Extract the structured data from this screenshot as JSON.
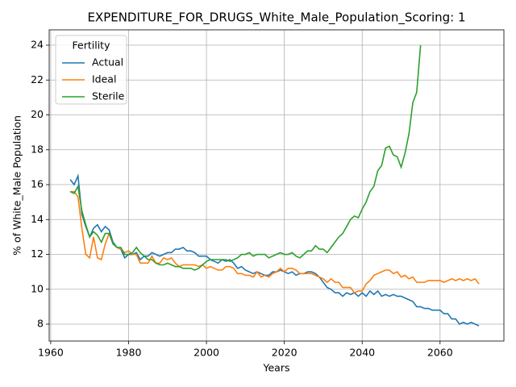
{
  "chart_data": {
    "type": "line",
    "title": "EXPENDITURE_FOR_DRUGS_White_Male_Population_Scoring: 1",
    "x_label": "Years",
    "y_label": "% of White_Male Population",
    "legend_title": "Fertility",
    "legend_loc": "upper-left",
    "grid": true,
    "xlim": [
      1959.6,
      2076.4
    ],
    "ylim": [
      7.03,
      24.88
    ],
    "xticks": [
      1960,
      1980,
      2000,
      2020,
      2040,
      2060
    ],
    "yticks": [
      8,
      10,
      12,
      14,
      16,
      18,
      20,
      22,
      24
    ],
    "x": [
      1965,
      1966,
      1967,
      1968,
      1969,
      1970,
      1971,
      1972,
      1973,
      1974,
      1975,
      1976,
      1977,
      1978,
      1979,
      1980,
      1981,
      1982,
      1983,
      1984,
      1985,
      1986,
      1987,
      1988,
      1989,
      1990,
      1991,
      1992,
      1993,
      1994,
      1995,
      1996,
      1997,
      1998,
      1999,
      2000,
      2001,
      2002,
      2003,
      2004,
      2005,
      2006,
      2007,
      2008,
      2009,
      2010,
      2011,
      2012,
      2013,
      2014,
      2015,
      2016,
      2017,
      2018,
      2019,
      2020,
      2021,
      2022,
      2023,
      2024,
      2025,
      2026,
      2027,
      2028,
      2029,
      2030,
      2031,
      2032,
      2033,
      2034,
      2035,
      2036,
      2037,
      2038,
      2039,
      2040,
      2041,
      2042,
      2043,
      2044,
      2045,
      2046,
      2047,
      2048,
      2049,
      2050,
      2051,
      2052,
      2053,
      2054,
      2055,
      2056,
      2057,
      2058,
      2059,
      2060,
      2061,
      2062,
      2063,
      2064,
      2065,
      2066,
      2067,
      2068,
      2069,
      2070
    ],
    "series": [
      {
        "name": "Actual",
        "color": "#1f77b4",
        "values": [
          16.3,
          16.0,
          16.5,
          14.3,
          13.6,
          13.0,
          13.5,
          13.7,
          13.3,
          13.6,
          13.4,
          12.7,
          12.4,
          12.3,
          11.8,
          12.0,
          12.0,
          12.1,
          11.7,
          11.9,
          11.9,
          12.1,
          12.0,
          11.9,
          12.0,
          12.1,
          12.1,
          12.3,
          12.3,
          12.4,
          12.2,
          12.2,
          12.1,
          11.9,
          11.9,
          11.9,
          11.7,
          11.6,
          11.5,
          11.7,
          11.6,
          11.7,
          11.5,
          11.2,
          11.3,
          11.1,
          11.0,
          10.9,
          11.0,
          10.9,
          10.8,
          10.8,
          11.0,
          11.0,
          11.1,
          11.0,
          10.9,
          11.0,
          10.8,
          10.9,
          10.9,
          11.0,
          11.0,
          10.9,
          10.7,
          10.4,
          10.1,
          10.0,
          9.8,
          9.8,
          9.6,
          9.8,
          9.7,
          9.8,
          9.6,
          9.8,
          9.6,
          9.9,
          9.7,
          9.9,
          9.6,
          9.7,
          9.6,
          9.7,
          9.6,
          9.6,
          9.5,
          9.4,
          9.3,
          9.0,
          9.0,
          8.9,
          8.9,
          8.8,
          8.8,
          8.8,
          8.6,
          8.6,
          8.3,
          8.3,
          8.0,
          8.1,
          8.0,
          8.1,
          8.0,
          7.9
        ]
      },
      {
        "name": "Ideal",
        "color": "#ff7f0e",
        "values": [
          15.6,
          15.6,
          15.3,
          13.5,
          12.0,
          11.8,
          13.0,
          11.8,
          11.7,
          12.6,
          13.2,
          12.6,
          12.4,
          12.3,
          12.1,
          12.2,
          12.0,
          12.0,
          11.5,
          11.5,
          11.5,
          11.9,
          11.5,
          11.5,
          11.8,
          11.7,
          11.8,
          11.5,
          11.3,
          11.4,
          11.4,
          11.4,
          11.4,
          11.3,
          11.4,
          11.2,
          11.3,
          11.2,
          11.1,
          11.1,
          11.3,
          11.3,
          11.2,
          10.9,
          10.9,
          10.8,
          10.8,
          10.7,
          11.0,
          10.7,
          10.8,
          10.7,
          10.9,
          11.0,
          11.2,
          11.0,
          11.2,
          11.2,
          11.1,
          10.9,
          10.9,
          10.9,
          10.9,
          10.8,
          10.7,
          10.6,
          10.4,
          10.6,
          10.4,
          10.4,
          10.1,
          10.1,
          10.1,
          9.8,
          9.9,
          9.9,
          10.3,
          10.5,
          10.8,
          10.9,
          11.0,
          11.1,
          11.1,
          10.9,
          11.0,
          10.7,
          10.8,
          10.6,
          10.7,
          10.4,
          10.4,
          10.4,
          10.5,
          10.5,
          10.5,
          10.5,
          10.4,
          10.5,
          10.6,
          10.5,
          10.6,
          10.5,
          10.6,
          10.5,
          10.6,
          10.3
        ]
      },
      {
        "name": "Sterile",
        "color": "#2ca02c",
        "values": [
          15.6,
          15.5,
          15.9,
          14.5,
          13.7,
          13.0,
          13.3,
          13.1,
          12.7,
          13.2,
          13.2,
          12.6,
          12.4,
          12.4,
          12.0,
          12.0,
          12.1,
          12.4,
          12.1,
          11.9,
          11.7,
          11.7,
          11.5,
          11.4,
          11.4,
          11.5,
          11.4,
          11.3,
          11.3,
          11.2,
          11.2,
          11.2,
          11.1,
          11.2,
          11.4,
          11.6,
          11.7,
          11.7,
          11.7,
          11.7,
          11.7,
          11.6,
          11.7,
          11.8,
          12.0,
          12.0,
          12.1,
          11.9,
          12.0,
          12.0,
          12.0,
          11.8,
          11.9,
          12.0,
          12.1,
          12.0,
          12.0,
          12.1,
          11.9,
          11.8,
          12.0,
          12.2,
          12.2,
          12.5,
          12.3,
          12.3,
          12.1,
          12.4,
          12.7,
          13.0,
          13.2,
          13.6,
          14.0,
          14.2,
          14.1,
          14.6,
          15.0,
          15.6,
          15.9,
          16.8,
          17.1,
          18.1,
          18.2,
          17.7,
          17.6,
          17.0,
          17.8,
          18.9,
          20.7,
          21.3,
          24.0,
          null,
          null,
          null,
          null,
          null,
          null,
          null,
          null,
          null,
          null,
          null,
          null,
          null,
          null,
          null
        ]
      }
    ]
  }
}
